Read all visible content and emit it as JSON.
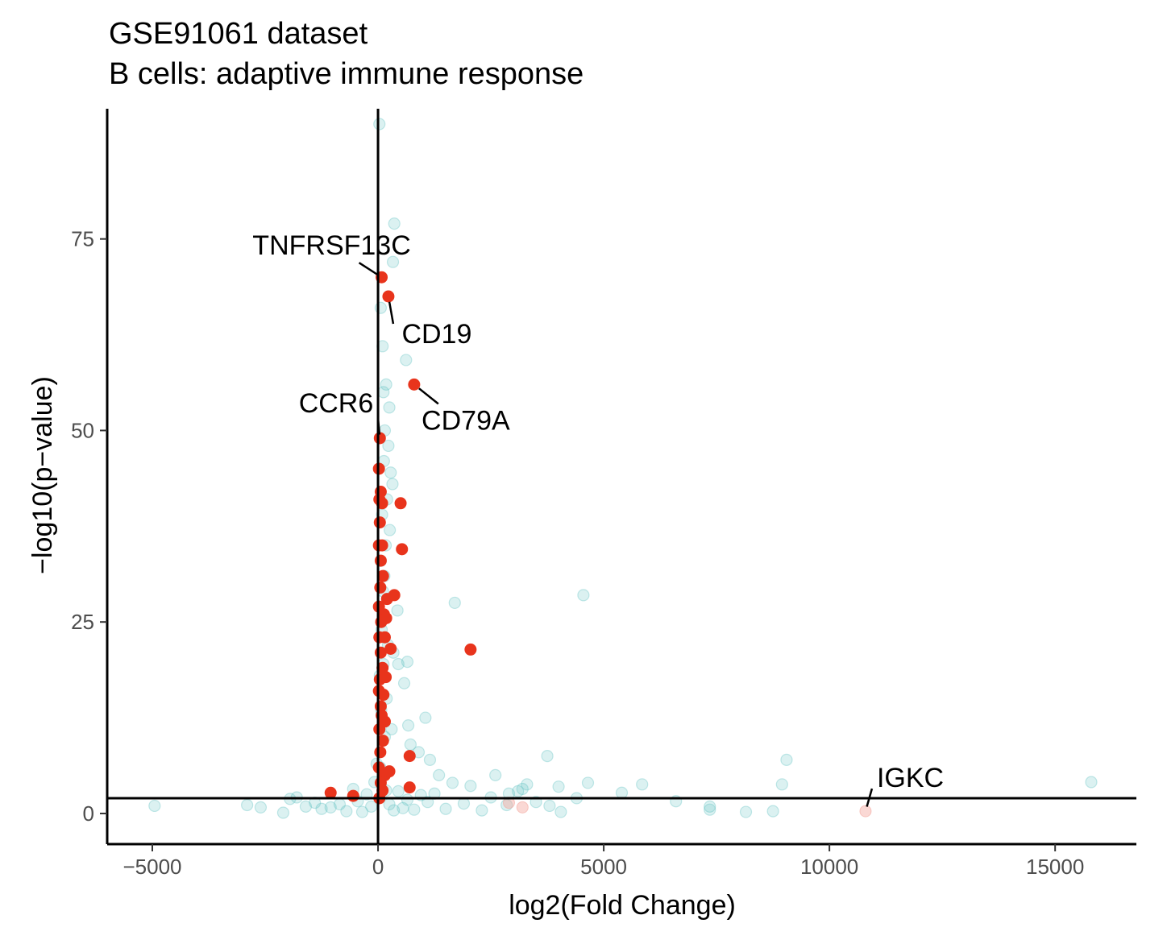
{
  "chart_data": {
    "type": "scatter",
    "title": "GSE91061 dataset",
    "subtitle": "B cells: adaptive immune response",
    "xlabel": "log2(Fold Change)",
    "ylabel": "−log10(p−value)",
    "xlim": [
      -6000,
      16800
    ],
    "ylim": [
      -4,
      92
    ],
    "x_ticks": [
      -5000,
      0,
      5000,
      10000,
      15000
    ],
    "x_tick_labels": [
      "−5000",
      "0",
      "5000",
      "10000",
      "15000"
    ],
    "y_ticks": [
      0,
      25,
      50,
      75
    ],
    "y_tick_labels": [
      "0",
      "25",
      "50",
      "75"
    ],
    "reference_lines": {
      "vertical_x": 0,
      "horizontal_y": 2
    },
    "grid": false,
    "legend": "none",
    "colors": {
      "background_points": "#5bc0c0",
      "pathway_points": "#e8341c",
      "faded_pathway_points": "#f4a8a0"
    },
    "series": [
      {
        "values": [
          {
            "x": -4950,
            "y": 1.0
          },
          {
            "x": -2900,
            "y": 1.1
          },
          {
            "x": -2600,
            "y": 0.8
          },
          {
            "x": -2100,
            "y": 0.1
          },
          {
            "x": -1950,
            "y": 1.9
          },
          {
            "x": -1800,
            "y": 2.1
          },
          {
            "x": -1600,
            "y": 0.9
          },
          {
            "x": -1400,
            "y": 1.4
          },
          {
            "x": -1250,
            "y": 0.6
          },
          {
            "x": -1050,
            "y": 0.8
          },
          {
            "x": -850,
            "y": 1.2
          },
          {
            "x": -700,
            "y": 0.3
          },
          {
            "x": -550,
            "y": 3.2
          },
          {
            "x": -450,
            "y": 1.6
          },
          {
            "x": -350,
            "y": 0.2
          },
          {
            "x": -250,
            "y": 2.5
          },
          {
            "x": -150,
            "y": 0.9
          },
          {
            "x": -80,
            "y": 4.1
          },
          {
            "x": -30,
            "y": 6.5
          },
          {
            "x": 30,
            "y": 90.0
          },
          {
            "x": 360,
            "y": 77.0
          },
          {
            "x": 330,
            "y": 72.0
          },
          {
            "x": 60,
            "y": 66.0
          },
          {
            "x": 100,
            "y": 61.0
          },
          {
            "x": 620,
            "y": 59.2
          },
          {
            "x": 180,
            "y": 56.0
          },
          {
            "x": 120,
            "y": 55.0
          },
          {
            "x": 250,
            "y": 53.0
          },
          {
            "x": 150,
            "y": 50.0
          },
          {
            "x": 230,
            "y": 48.0
          },
          {
            "x": 130,
            "y": 46.0
          },
          {
            "x": 280,
            "y": 44.5
          },
          {
            "x": 320,
            "y": 43.0
          },
          {
            "x": 200,
            "y": 41.0
          },
          {
            "x": 90,
            "y": 39.0
          },
          {
            "x": 260,
            "y": 37.0
          },
          {
            "x": 170,
            "y": 35.0
          },
          {
            "x": 60,
            "y": 33.0
          },
          {
            "x": 140,
            "y": 31.0
          },
          {
            "x": 110,
            "y": 29.0
          },
          {
            "x": 1700,
            "y": 27.5
          },
          {
            "x": 4550,
            "y": 28.5
          },
          {
            "x": 430,
            "y": 26.5
          },
          {
            "x": 80,
            "y": 24.0
          },
          {
            "x": 220,
            "y": 22.0
          },
          {
            "x": 340,
            "y": 21.0
          },
          {
            "x": 120,
            "y": 19.5
          },
          {
            "x": 650,
            "y": 19.8
          },
          {
            "x": 450,
            "y": 19.5
          },
          {
            "x": 40,
            "y": 18.0
          },
          {
            "x": 580,
            "y": 17.0
          },
          {
            "x": 190,
            "y": 15.0
          },
          {
            "x": 70,
            "y": 13.5
          },
          {
            "x": 1050,
            "y": 12.5
          },
          {
            "x": 670,
            "y": 11.5
          },
          {
            "x": 300,
            "y": 11.0
          },
          {
            "x": 150,
            "y": 10.0
          },
          {
            "x": 720,
            "y": 9.0
          },
          {
            "x": 900,
            "y": 8.0
          },
          {
            "x": 1150,
            "y": 7.0
          },
          {
            "x": 3750,
            "y": 7.5
          },
          {
            "x": 9050,
            "y": 7.0
          },
          {
            "x": 50,
            "y": 6.0
          },
          {
            "x": 1350,
            "y": 5.0
          },
          {
            "x": 2600,
            "y": 5.0
          },
          {
            "x": 4650,
            "y": 4.0
          },
          {
            "x": 8950,
            "y": 3.8
          },
          {
            "x": 5850,
            "y": 3.8
          },
          {
            "x": 15800,
            "y": 4.1
          },
          {
            "x": 1650,
            "y": 4.0
          },
          {
            "x": 3300,
            "y": 3.8
          },
          {
            "x": 4000,
            "y": 3.5
          },
          {
            "x": 2050,
            "y": 3.6
          },
          {
            "x": 5400,
            "y": 2.7
          },
          {
            "x": 3100,
            "y": 2.9
          },
          {
            "x": 4400,
            "y": 2.0
          },
          {
            "x": 3500,
            "y": 1.5
          },
          {
            "x": 2500,
            "y": 2.1
          },
          {
            "x": 1250,
            "y": 2.6
          },
          {
            "x": 950,
            "y": 2.4
          },
          {
            "x": 650,
            "y": 1.8
          },
          {
            "x": 450,
            "y": 2.9
          },
          {
            "x": 250,
            "y": 1.2
          },
          {
            "x": 6600,
            "y": 1.6
          },
          {
            "x": 7350,
            "y": 0.9
          },
          {
            "x": 7350,
            "y": 0.5
          },
          {
            "x": 8150,
            "y": 0.2
          },
          {
            "x": 8750,
            "y": 0.3
          },
          {
            "x": 3800,
            "y": 1.0
          },
          {
            "x": 4050,
            "y": 0.2
          },
          {
            "x": 2850,
            "y": 1.1
          },
          {
            "x": 1500,
            "y": 0.6
          },
          {
            "x": 1900,
            "y": 1.3
          },
          {
            "x": 2300,
            "y": 0.4
          },
          {
            "x": 1100,
            "y": 1.5
          },
          {
            "x": 800,
            "y": 0.5
          },
          {
            "x": 550,
            "y": 0.7
          },
          {
            "x": 350,
            "y": 0.4
          },
          {
            "x": 180,
            "y": 3.0
          },
          {
            "x": 2900,
            "y": 2.6
          },
          {
            "x": 3200,
            "y": 3.2
          }
        ]
      },
      {
        "values": [
          {
            "x": 80,
            "y": 70.0,
            "label": "TNFRSF13C"
          },
          {
            "x": 230,
            "y": 67.5,
            "label": "CD19"
          },
          {
            "x": 800,
            "y": 56.0,
            "label": "CD79A"
          },
          {
            "x": 40,
            "y": 49.0,
            "label": "CCR6"
          },
          {
            "x": 20,
            "y": 45.0
          },
          {
            "x": 60,
            "y": 42.0
          },
          {
            "x": 30,
            "y": 41.0
          },
          {
            "x": 90,
            "y": 40.5
          },
          {
            "x": 500,
            "y": 40.5
          },
          {
            "x": 40,
            "y": 38.0
          },
          {
            "x": 20,
            "y": 35.0
          },
          {
            "x": 90,
            "y": 35.0
          },
          {
            "x": 530,
            "y": 34.5
          },
          {
            "x": 60,
            "y": 33.0
          },
          {
            "x": 110,
            "y": 31.0
          },
          {
            "x": 50,
            "y": 29.5
          },
          {
            "x": 200,
            "y": 28.0
          },
          {
            "x": 360,
            "y": 28.5
          },
          {
            "x": 20,
            "y": 27.0
          },
          {
            "x": 130,
            "y": 26.0
          },
          {
            "x": 70,
            "y": 25.0
          },
          {
            "x": 180,
            "y": 25.5
          },
          {
            "x": 30,
            "y": 23.0
          },
          {
            "x": 150,
            "y": 23.0
          },
          {
            "x": 2050,
            "y": 21.4
          },
          {
            "x": 60,
            "y": 21.0
          },
          {
            "x": 280,
            "y": 21.5
          },
          {
            "x": 100,
            "y": 19.0
          },
          {
            "x": 40,
            "y": 17.5
          },
          {
            "x": 170,
            "y": 17.8
          },
          {
            "x": 20,
            "y": 16.0
          },
          {
            "x": 120,
            "y": 15.5
          },
          {
            "x": 60,
            "y": 14.0
          },
          {
            "x": 80,
            "y": 12.8
          },
          {
            "x": 150,
            "y": 12.0
          },
          {
            "x": 30,
            "y": 11.0
          },
          {
            "x": 110,
            "y": 9.5
          },
          {
            "x": 50,
            "y": 8.0
          },
          {
            "x": 700,
            "y": 7.5
          },
          {
            "x": 20,
            "y": 6.0
          },
          {
            "x": 150,
            "y": 5.0
          },
          {
            "x": 250,
            "y": 5.5
          },
          {
            "x": 60,
            "y": 4.0
          },
          {
            "x": 700,
            "y": 3.4
          },
          {
            "x": 100,
            "y": 3.0
          },
          {
            "x": -1050,
            "y": 2.7
          },
          {
            "x": -550,
            "y": 2.3
          },
          {
            "x": 30,
            "y": 2.0
          }
        ]
      },
      {
        "values": [
          {
            "x": 10800,
            "y": 0.3,
            "label": "IGKC"
          },
          {
            "x": 3200,
            "y": 0.8
          },
          {
            "x": 2900,
            "y": 1.4
          }
        ]
      }
    ]
  }
}
